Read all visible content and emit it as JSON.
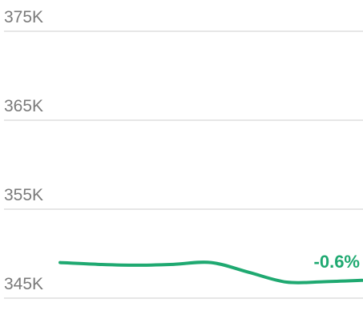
{
  "chart_data": {
    "type": "line",
    "categories": [
      null,
      null,
      null,
      null,
      null,
      null,
      null,
      null,
      null
    ],
    "series": [
      {
        "color": "#1fa971",
        "values": [
          349000,
          348800,
          348700,
          348800,
          349000,
          347900,
          346800,
          346850,
          347000
        ]
      }
    ],
    "annotation": "-0.6%",
    "ylim": [
      345000,
      375000
    ],
    "yticks": [
      {
        "value": 345000,
        "label": "345K"
      },
      {
        "value": 355000,
        "label": "355K"
      },
      {
        "value": 365000,
        "label": "365K"
      },
      {
        "value": 375000,
        "label": "375K"
      }
    ],
    "grid": true
  }
}
